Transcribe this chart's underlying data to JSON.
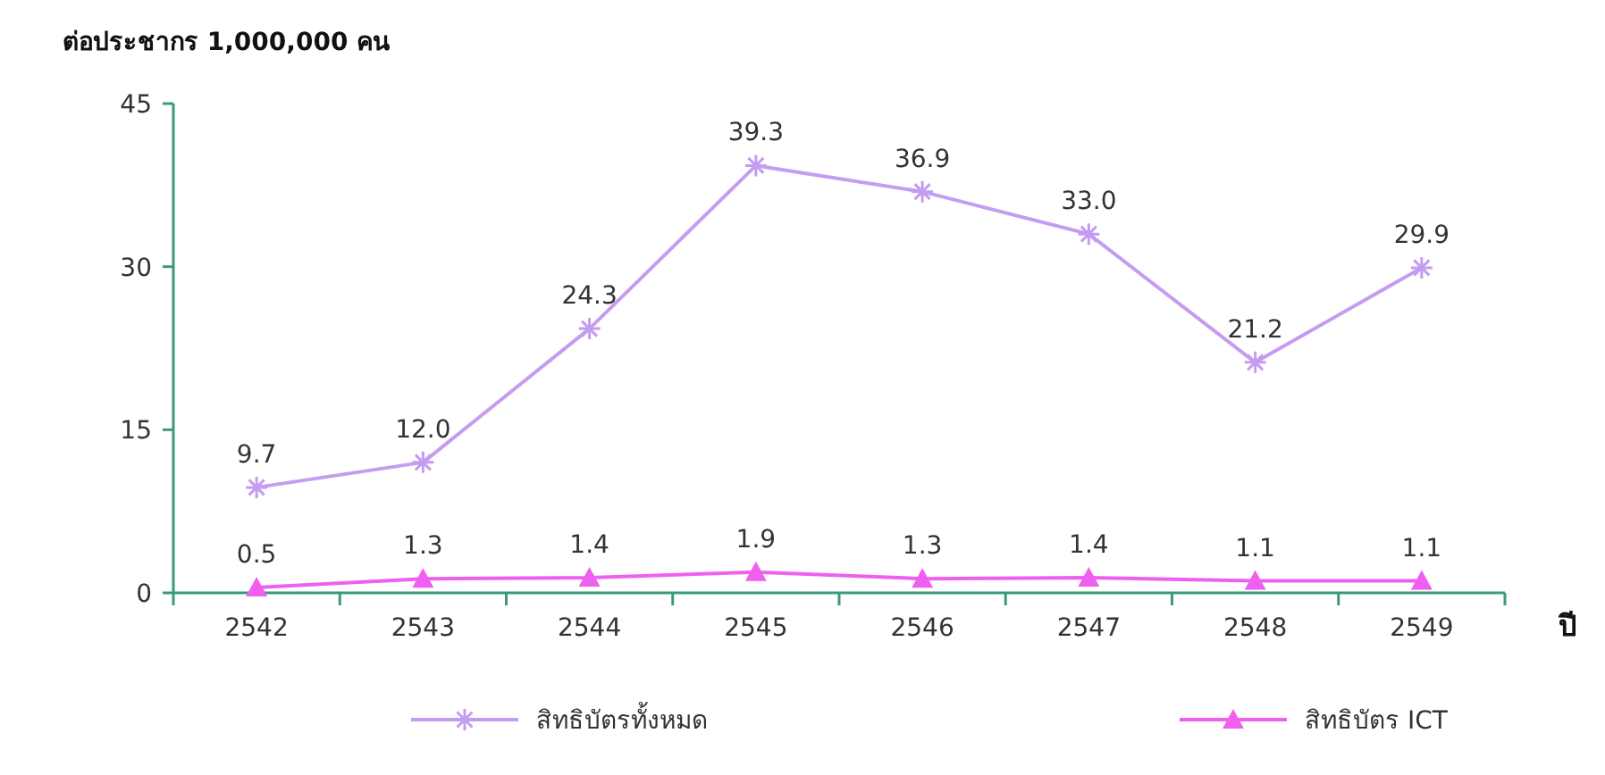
{
  "chart_data": {
    "type": "line",
    "ylabel": "ต่อประชากร 1,000,000 คน",
    "xlabel": "ปี",
    "categories": [
      "2542",
      "2543",
      "2544",
      "2545",
      "2546",
      "2547",
      "2548",
      "2549"
    ],
    "ylim": [
      0,
      45
    ],
    "yticks": [
      0,
      15,
      30,
      45
    ],
    "series": [
      {
        "name": "สิทธิบัตรทั้งหมด",
        "color": "#c49cf0",
        "marker": "cross",
        "values": [
          9.7,
          12.0,
          24.3,
          39.3,
          36.9,
          33.0,
          21.2,
          29.9
        ],
        "value_labels": [
          "9.7",
          "12.0",
          "24.3",
          "39.3",
          "36.9",
          "33.0",
          "21.2",
          "29.9"
        ]
      },
      {
        "name": "สิทธิบัตร ICT",
        "color": "#f060f0",
        "marker": "triangle",
        "values": [
          0.5,
          1.3,
          1.4,
          1.9,
          1.3,
          1.4,
          1.1,
          1.1
        ],
        "value_labels": [
          "0.5",
          "1.3",
          "1.4",
          "1.9",
          "1.3",
          "1.4",
          "1.1",
          "1.1"
        ]
      }
    ],
    "legend": "bottom",
    "grid": false
  }
}
